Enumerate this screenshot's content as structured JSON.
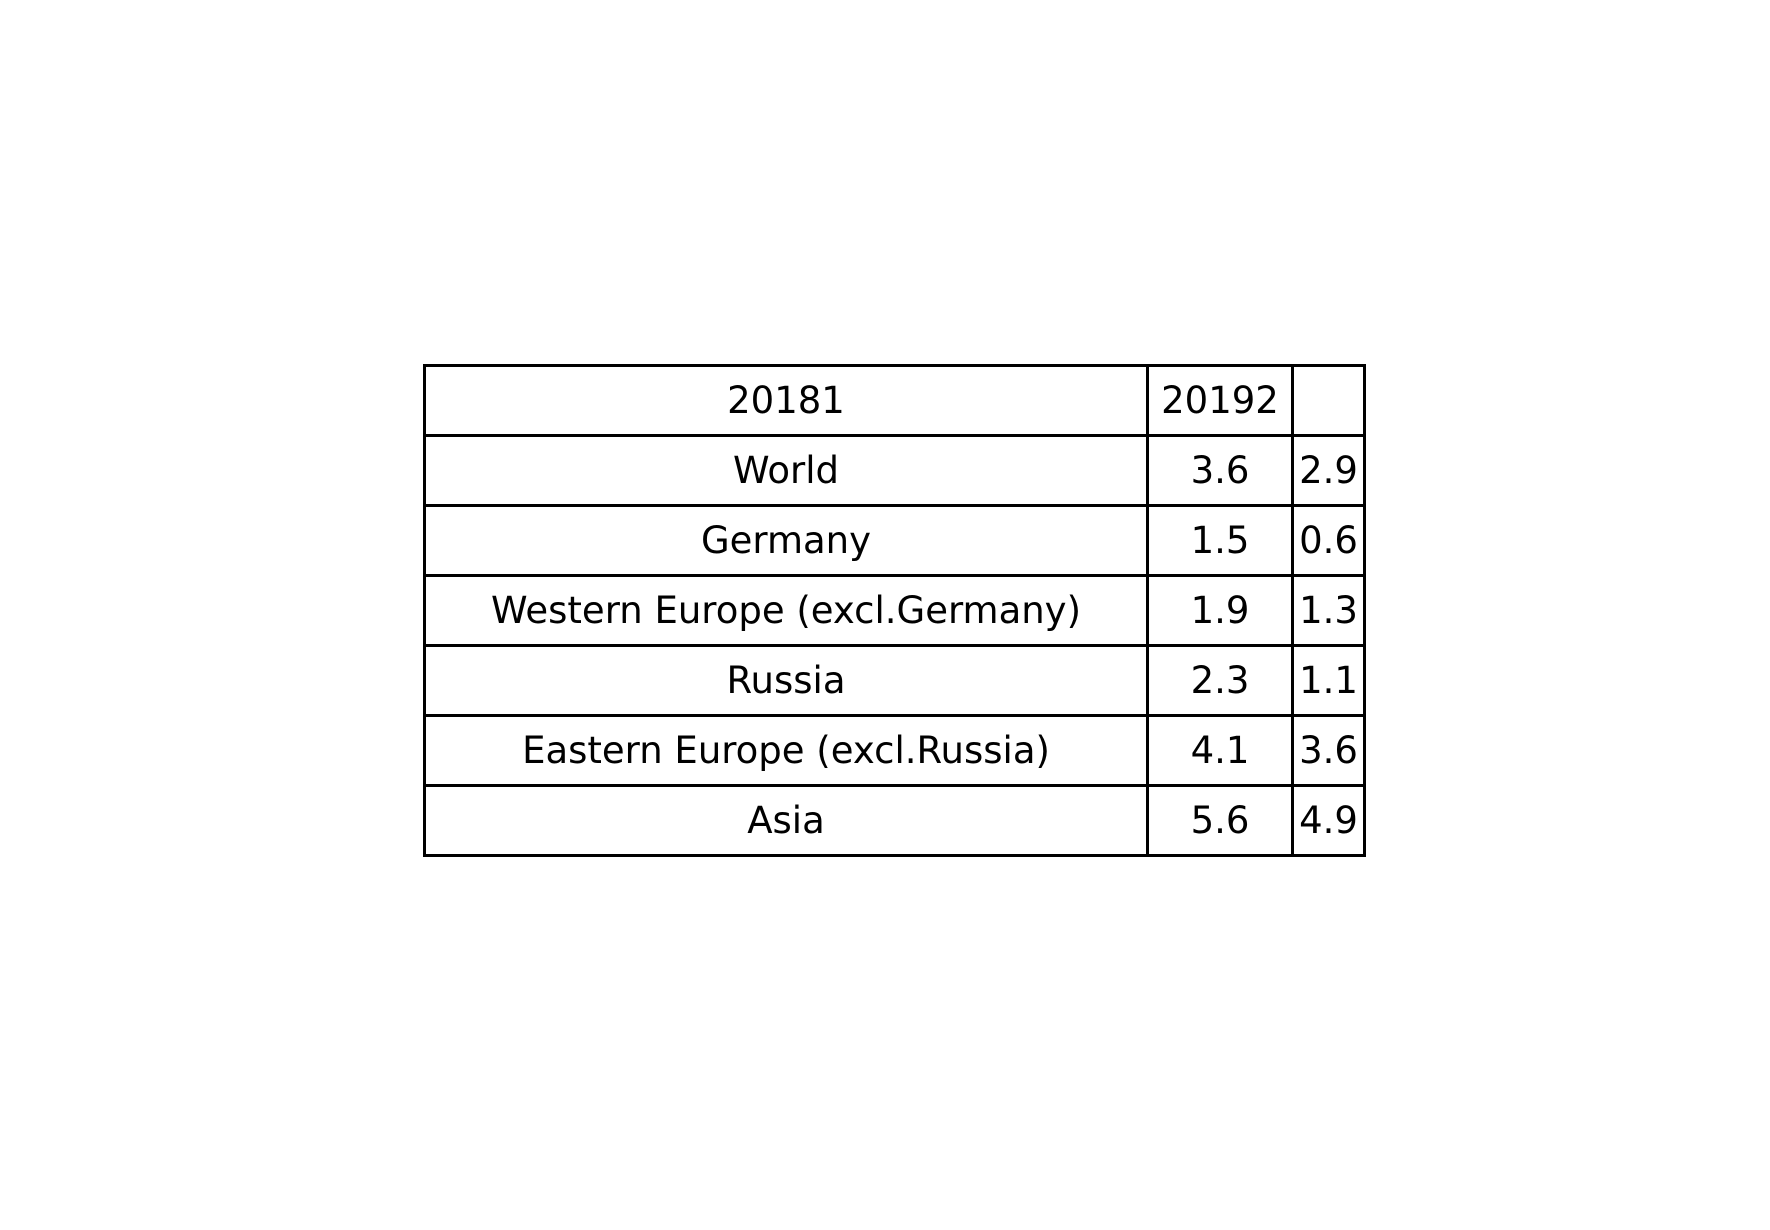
{
  "chart_data": {
    "type": "table",
    "header": [
      "20181",
      "20192",
      ""
    ],
    "rows": [
      {
        "label": "World",
        "v1": "3.6",
        "v2": "2.9"
      },
      {
        "label": "Germany",
        "v1": "1.5",
        "v2": "0.6"
      },
      {
        "label": "Western Europe (excl.Germany)",
        "v1": "1.9",
        "v2": "1.3"
      },
      {
        "label": "Russia",
        "v1": "2.3",
        "v2": "1.1"
      },
      {
        "label": "Eastern Europe (excl.Russia)",
        "v1": "4.1",
        "v2": "3.6"
      },
      {
        "label": "Asia",
        "v1": "5.6",
        "v2": "4.9"
      }
    ]
  }
}
